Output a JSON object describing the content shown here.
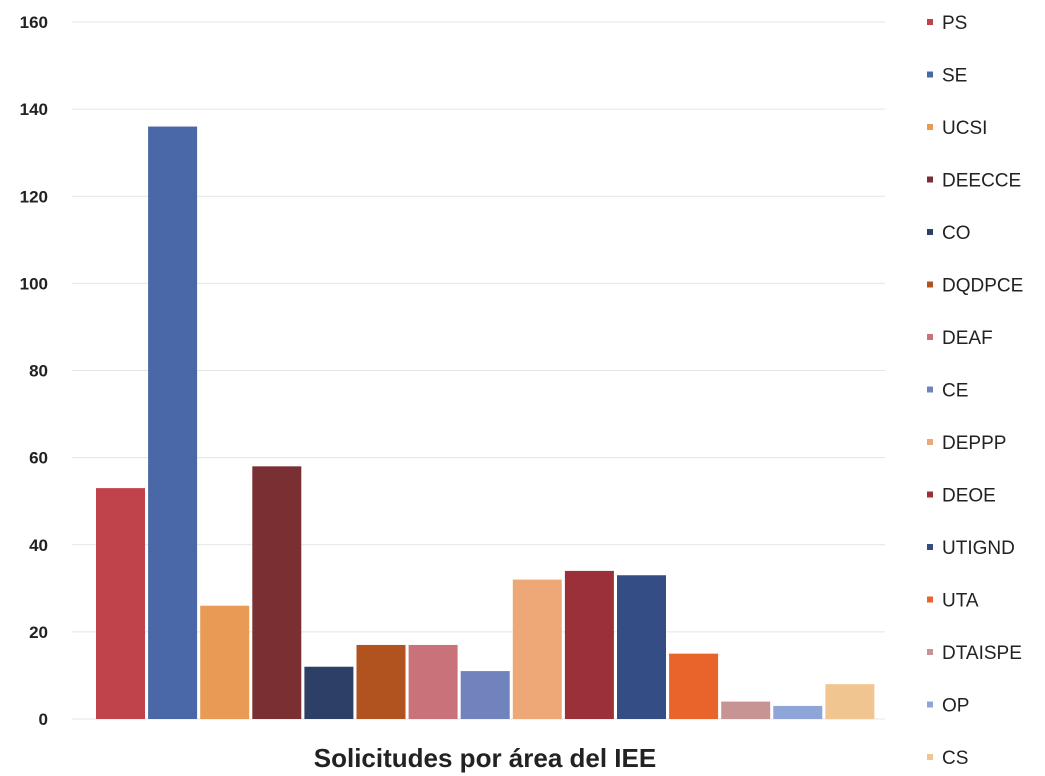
{
  "chart_data": {
    "type": "bar",
    "title": "Solicitudes por área del IEE",
    "xlabel": "",
    "ylabel": "",
    "ylim": [
      0,
      160
    ],
    "yticks": [
      0,
      20,
      40,
      60,
      80,
      100,
      120,
      140,
      160
    ],
    "grid": true,
    "legend_position": "right",
    "series": [
      {
        "name": "PS",
        "value": 53,
        "color": "#c0434b"
      },
      {
        "name": "SE",
        "value": 136,
        "color": "#4a67a8"
      },
      {
        "name": "UCSI",
        "value": 26,
        "color": "#e99a55"
      },
      {
        "name": "DEECCE",
        "value": 58,
        "color": "#7a2f33"
      },
      {
        "name": "CO",
        "value": 12,
        "color": "#2d3f66"
      },
      {
        "name": "DQDPCE",
        "value": 17,
        "color": "#b0531f"
      },
      {
        "name": "DEAF",
        "value": 17,
        "color": "#c9727a"
      },
      {
        "name": "CE",
        "value": 11,
        "color": "#7183bd"
      },
      {
        "name": "DEPPP",
        "value": 32,
        "color": "#eea877"
      },
      {
        "name": "DEOE",
        "value": 34,
        "color": "#9c3038"
      },
      {
        "name": "UTIGND",
        "value": 33,
        "color": "#344d85"
      },
      {
        "name": "UTA",
        "value": 15,
        "color": "#e8642a"
      },
      {
        "name": "DTAISPE",
        "value": 4,
        "color": "#c79493"
      },
      {
        "name": "OP",
        "value": 3,
        "color": "#8fa5d8"
      },
      {
        "name": "CS",
        "value": 8,
        "color": "#f0c590"
      }
    ]
  }
}
